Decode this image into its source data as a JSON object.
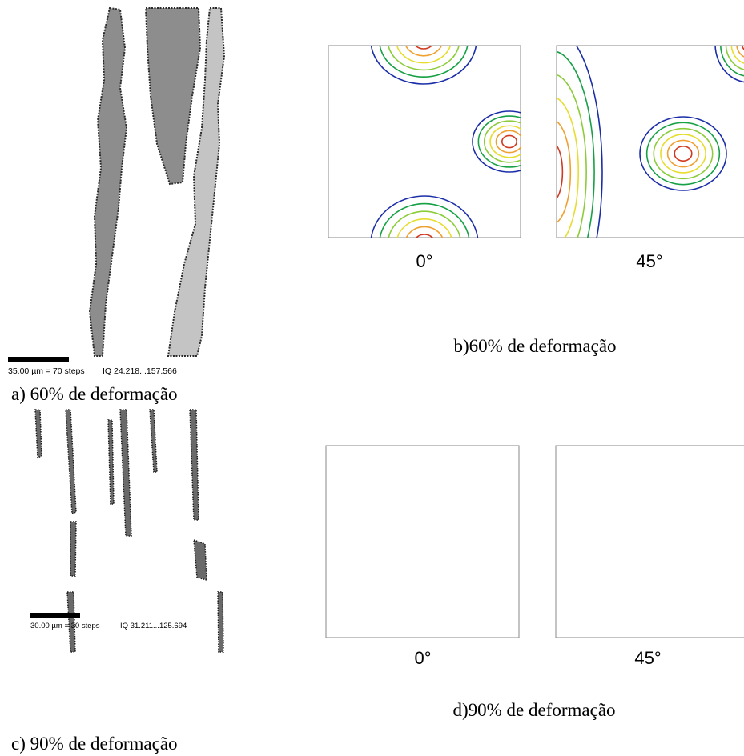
{
  "panel_a": {
    "scale_bar": "35.00 µm = 70 steps",
    "iq_range": "IQ 24.218...157.566",
    "caption": "a) 60% de deformação"
  },
  "panel_b": {
    "labels": [
      "0°",
      "45°"
    ],
    "caption": "b)60% de deformação"
  },
  "panel_c": {
    "scale_bar": "30.00 µm = 30 steps",
    "iq_range": "IQ 31.211...125.694",
    "caption": "c) 90% de deformação"
  },
  "panel_d": {
    "labels": [
      "0°",
      "45°"
    ],
    "caption": "d)90% de deformação"
  }
}
